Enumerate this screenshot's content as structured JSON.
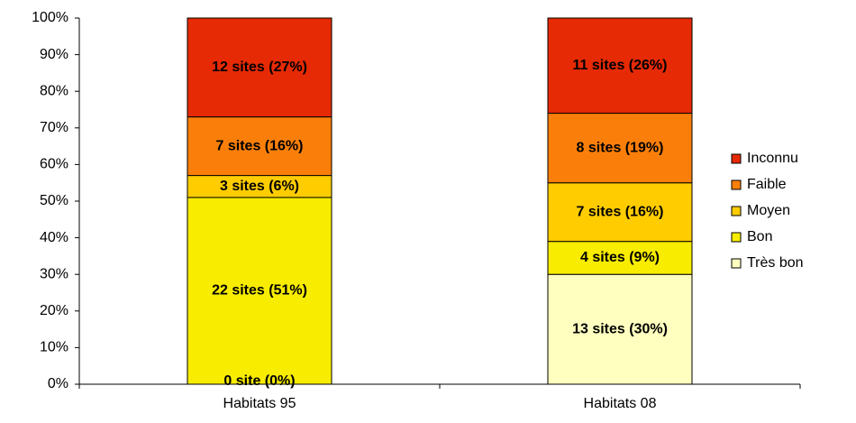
{
  "chart_data": {
    "type": "stacked_bar",
    "categories": [
      "Habitats 95",
      "Habitats 08"
    ],
    "series": [
      {
        "name": "Très bon",
        "color": "#ffffc0",
        "values": [
          0,
          30
        ],
        "value_labels": [
          "0 site (0%)",
          "13 sites (30%)"
        ]
      },
      {
        "name": "Bon",
        "color": "#f8ec00",
        "values": [
          51,
          9
        ],
        "value_labels": [
          "22 sites (51%)",
          "4 sites (9%)"
        ]
      },
      {
        "name": "Moyen",
        "color": "#ffcc00",
        "values": [
          6,
          16
        ],
        "value_labels": [
          "3 sites (6%)",
          "7 sites (16%)"
        ]
      },
      {
        "name": "Faible",
        "color": "#fa7f0a",
        "values": [
          16,
          19
        ],
        "value_labels": [
          "7 sites (16%)",
          "8 sites (19%)"
        ]
      },
      {
        "name": "Inconnu",
        "color": "#e62a05",
        "values": [
          27,
          26
        ],
        "value_labels": [
          "12 sites (27%)",
          "11 sites (26%)"
        ]
      }
    ],
    "ylim": [
      0,
      100
    ],
    "yticks": [
      {
        "value": 0,
        "label": "0%"
      },
      {
        "value": 10,
        "label": "10%"
      },
      {
        "value": 20,
        "label": "20%"
      },
      {
        "value": 30,
        "label": "30%"
      },
      {
        "value": 40,
        "label": "40%"
      },
      {
        "value": 50,
        "label": "50%"
      },
      {
        "value": 60,
        "label": "60%"
      },
      {
        "value": 70,
        "label": "70%"
      },
      {
        "value": 80,
        "label": "80%"
      },
      {
        "value": 90,
        "label": "90%"
      },
      {
        "value": 100,
        "label": "100%"
      }
    ],
    "grid": false,
    "legend": "right"
  }
}
